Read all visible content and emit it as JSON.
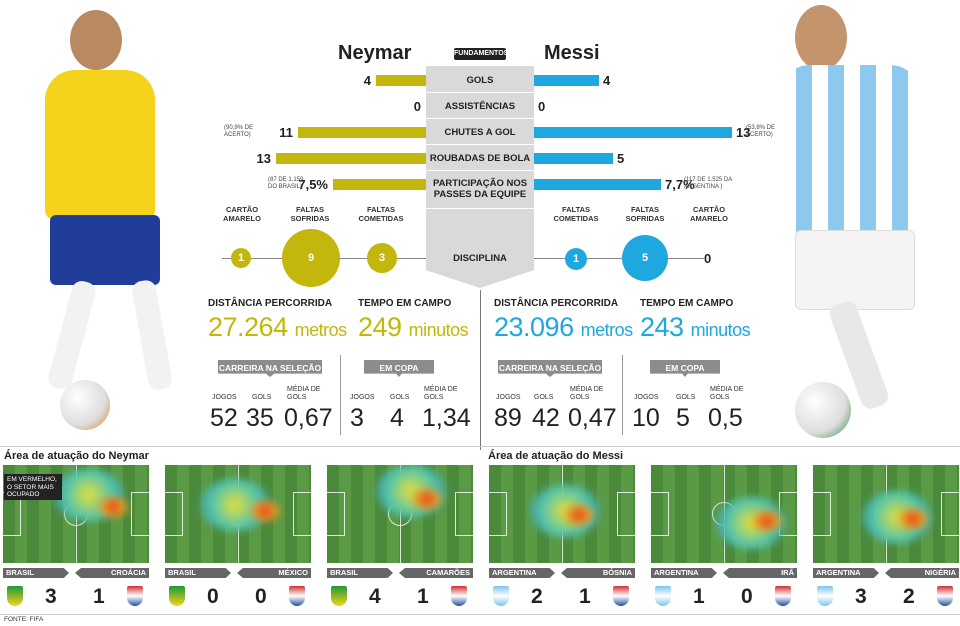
{
  "players": {
    "left": "Neymar",
    "right": "Messi"
  },
  "center_tag": "FUNDAMENTOS",
  "rows": [
    {
      "label": "GOLS",
      "left": "4",
      "right": "4",
      "left_frac": 0.33,
      "right_frac": 0.33
    },
    {
      "label": "ASSISTÊNCIAS",
      "left": "0",
      "right": "0",
      "left_frac": 0,
      "right_frac": 0
    },
    {
      "label": "CHUTES A GOL",
      "left": "11",
      "right": "13",
      "left_note": "(90,9% DE ACERTO)",
      "right_note": "(53,8% DE ACERTO)",
      "left_frac": 0.85,
      "right_frac": 1.0
    },
    {
      "label": "ROUBADAS DE BOLA",
      "left": "13",
      "right": "5",
      "left_frac": 1.0,
      "right_frac": 0.4
    },
    {
      "label": "PARTICIPAÇÃO NOS PASSES DA EQUIPE",
      "left": "7,5%",
      "right": "7,7%",
      "left_note": "(87 DE 1.159 DO BRASIL)",
      "right_note": "(117 DE 1.525 DA ARGENTINA )",
      "left_frac": 0.62,
      "right_frac": 0.64
    }
  ],
  "disciplina": {
    "label": "DISCIPLINA",
    "left": [
      {
        "label": "CARTÃO AMARELO",
        "value": "1"
      },
      {
        "label": "FALTAS SOFRIDAS",
        "value": "9"
      },
      {
        "label": "FALTAS COMETIDAS",
        "value": "3"
      }
    ],
    "right": [
      {
        "label": "FALTAS COMETIDAS",
        "value": "1"
      },
      {
        "label": "FALTAS SOFRIDAS",
        "value": "5"
      },
      {
        "label": "CARTÃO AMARELO",
        "value": "0"
      }
    ]
  },
  "neymar": {
    "distancia_label": "DISTÂNCIA PERCORRIDA",
    "distancia": "27.264",
    "distancia_unit": "metros",
    "tempo_label": "TEMPO EM CAMPO",
    "tempo": "249",
    "tempo_unit": "minutos",
    "carreira_label": "CARREIRA NA SELEÇÃO",
    "copa_label": "EM COPA",
    "carreira": {
      "jogos": "52",
      "gols": "35",
      "media": "0,67"
    },
    "copa": {
      "jogos": "3",
      "gols": "4",
      "media": "1,34"
    }
  },
  "messi": {
    "distancia_label": "DISTÂNCIA PERCORRIDA",
    "distancia": "23.096",
    "distancia_unit": "metros",
    "tempo_label": "TEMPO EM CAMPO",
    "tempo": "243",
    "tempo_unit": "minutos",
    "carreira_label": "CARREIRA NA SELEÇÃO",
    "copa_label": "EM COPA",
    "carreira": {
      "jogos": "89",
      "gols": "42",
      "media": "0,47"
    },
    "copa": {
      "jogos": "10",
      "gols": "5",
      "media": "0,5"
    }
  },
  "stat_labels": {
    "jogos": "JOGOS",
    "gols": "GOLS",
    "media": "MÉDIA DE GOLS"
  },
  "area_neymar": "Área de atuação do Neymar",
  "area_messi": "Área de atuação do Messi",
  "callout": "EM VERMELHO, O SETOR MAIS OCUPADO",
  "matches_neymar": [
    {
      "home": "BRASIL",
      "away": "CROÁCIA",
      "hs": "3",
      "as": "1"
    },
    {
      "home": "BRASIL",
      "away": "MÉXICO",
      "hs": "0",
      "as": "0"
    },
    {
      "home": "BRASIL",
      "away": "CAMARÕES",
      "hs": "4",
      "as": "1"
    }
  ],
  "matches_messi": [
    {
      "home": "ARGENTINA",
      "away": "BÓSNIA",
      "hs": "2",
      "as": "1"
    },
    {
      "home": "ARGENTINA",
      "away": "IRÃ",
      "hs": "1",
      "as": "0"
    },
    {
      "home": "ARGENTINA",
      "away": "NIGÉRIA",
      "hs": "3",
      "as": "2"
    }
  ],
  "fonte": "FONTE: FIFA",
  "colors": {
    "brazil": "#c3b60d",
    "argentina": "#1fa7e0"
  }
}
